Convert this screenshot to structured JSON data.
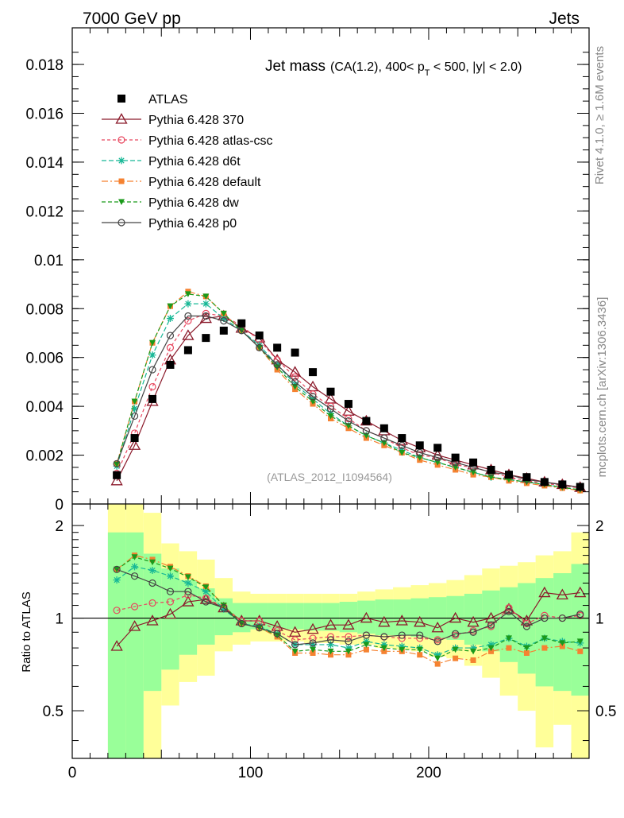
{
  "header": {
    "left": "7000 GeV pp",
    "right": "Jets"
  },
  "side_labels": {
    "rivet": "Rivet 4.1.0, ≥ 1.6M events",
    "mcplots": "mcplots.cern.ch [arXiv:1306.3436]"
  },
  "chart_data": [
    {
      "type": "line",
      "title_main": "Jet mass",
      "title_sub": "(CA(1.2), 400< p",
      "title_sub_T": "T",
      "title_sub_rest": " < 500, |y| < 2.0)",
      "watermark": "(ATLAS_2012_I1094564)",
      "xlim": [
        0,
        290
      ],
      "ylim": [
        0,
        0.0195
      ],
      "yticks": [
        0,
        0.002,
        0.004,
        0.006,
        0.008,
        0.01,
        0.012,
        0.014,
        0.016,
        0.018
      ],
      "ytick_labels": [
        "0",
        "0.002",
        "0.004",
        "0.006",
        "0.008",
        "0.01",
        "0.012",
        "0.014",
        "0.016",
        "0.018"
      ],
      "x": [
        25,
        35,
        45,
        55,
        65,
        75,
        85,
        95,
        105,
        115,
        125,
        135,
        145,
        155,
        165,
        175,
        185,
        195,
        205,
        215,
        225,
        235,
        245,
        255,
        265,
        275,
        285
      ],
      "series": [
        {
          "name": "ATLAS",
          "color": "#000000",
          "marker": "square",
          "values": [
            0.00118,
            0.0027,
            0.0043,
            0.0057,
            0.0063,
            0.0068,
            0.0071,
            0.0074,
            0.0069,
            0.0064,
            0.0062,
            0.0054,
            0.0046,
            0.0041,
            0.0034,
            0.0031,
            0.0027,
            0.0024,
            0.0023,
            0.0019,
            0.0017,
            0.0014,
            0.0012,
            0.0011,
            0.0009,
            0.0008,
            0.0007
          ]
        },
        {
          "name": "Pythia 6.428 370",
          "color": "#8b1a2b",
          "marker": "triangle-open",
          "dash": "solid",
          "values": [
            0.00095,
            0.0024,
            0.0042,
            0.0059,
            0.0069,
            0.0076,
            0.0077,
            0.0072,
            0.0068,
            0.0059,
            0.0054,
            0.0048,
            0.0043,
            0.0038,
            0.0034,
            0.003,
            0.0026,
            0.0023,
            0.002,
            0.0018,
            0.0016,
            0.0014,
            0.0012,
            0.00105,
            0.0009,
            0.0008,
            0.00068
          ]
        },
        {
          "name": "Pythia 6.428 atlas-csc",
          "color": "#e8475f",
          "marker": "circle-open",
          "dash": "4,3",
          "values": [
            0.00125,
            0.0029,
            0.0048,
            0.0064,
            0.0075,
            0.0078,
            0.0077,
            0.0073,
            0.0067,
            0.0059,
            0.0052,
            0.0045,
            0.004,
            0.0035,
            0.003,
            0.0027,
            0.0023,
            0.002,
            0.0019,
            0.0016,
            0.0015,
            0.0013,
            0.0011,
            0.00095,
            0.00085,
            0.00075,
            0.00065
          ]
        },
        {
          "name": "Pythia 6.428 d6t",
          "color": "#17b896",
          "marker": "star",
          "dash": "6,3",
          "values": [
            0.00155,
            0.0039,
            0.0061,
            0.0076,
            0.0082,
            0.0082,
            0.0076,
            0.0071,
            0.0065,
            0.0057,
            0.0049,
            0.0043,
            0.0037,
            0.0032,
            0.0028,
            0.0025,
            0.0022,
            0.0019,
            0.0017,
            0.0015,
            0.0013,
            0.0011,
            0.001,
            0.0009,
            0.0008,
            0.00068,
            0.00058
          ]
        },
        {
          "name": "Pythia 6.428 default",
          "color": "#f58231",
          "marker": "square-filled",
          "dash": "8,3,2,3",
          "values": [
            0.00165,
            0.0042,
            0.0066,
            0.0081,
            0.0087,
            0.0085,
            0.0078,
            0.0071,
            0.0064,
            0.0055,
            0.0047,
            0.0041,
            0.0035,
            0.0031,
            0.0027,
            0.0024,
            0.0021,
            0.0018,
            0.0016,
            0.0014,
            0.0012,
            0.0011,
            0.00095,
            0.00085,
            0.00075,
            0.00065,
            0.00055
          ]
        },
        {
          "name": "Pythia 6.428 dw",
          "color": "#1a9a1a",
          "marker": "triangle-down-filled",
          "dash": "5,3",
          "values": [
            0.00162,
            0.0042,
            0.0066,
            0.0081,
            0.0086,
            0.0085,
            0.0078,
            0.0071,
            0.0064,
            0.0056,
            0.0048,
            0.0042,
            0.0036,
            0.0032,
            0.0028,
            0.0025,
            0.0021,
            0.0019,
            0.0017,
            0.0015,
            0.0013,
            0.0011,
            0.001,
            0.0009,
            0.0008,
            0.00068,
            0.00058
          ]
        },
        {
          "name": "Pythia 6.428 p0",
          "color": "#444444",
          "marker": "circle-open",
          "dash": "solid",
          "values": [
            0.00165,
            0.0036,
            0.0055,
            0.0069,
            0.0077,
            0.0077,
            0.0075,
            0.0071,
            0.0064,
            0.0057,
            0.005,
            0.0044,
            0.0039,
            0.0034,
            0.003,
            0.0027,
            0.0024,
            0.0021,
            0.0019,
            0.0017,
            0.0015,
            0.0013,
            0.0012,
            0.001,
            0.0009,
            0.00078,
            0.00068
          ]
        }
      ]
    },
    {
      "type": "line",
      "ylabel": "Ratio to ATLAS",
      "xlim": [
        0,
        290
      ],
      "ylim": [
        0.35,
        2.35
      ],
      "scale": "log",
      "yticks": [
        0.5,
        1,
        2
      ],
      "ytick_labels": [
        "0.5",
        "1",
        "2"
      ],
      "xticks": [
        0,
        100,
        200
      ],
      "xtick_labels": [
        "0",
        "100",
        "200"
      ],
      "x": [
        25,
        35,
        45,
        55,
        65,
        75,
        85,
        95,
        105,
        115,
        125,
        135,
        145,
        155,
        165,
        175,
        185,
        195,
        205,
        215,
        225,
        235,
        245,
        255,
        265,
        275,
        285
      ],
      "bands": {
        "yellow_low": [
          0.35,
          0.35,
          0.35,
          0.52,
          0.62,
          0.65,
          0.78,
          0.82,
          0.84,
          0.84,
          0.84,
          0.83,
          0.83,
          0.82,
          0.82,
          0.8,
          0.79,
          0.78,
          0.75,
          0.74,
          0.7,
          0.64,
          0.56,
          0.5,
          0.38,
          0.45,
          0.35
        ],
        "yellow_high": [
          2.35,
          2.35,
          2.2,
          1.75,
          1.65,
          1.55,
          1.35,
          1.22,
          1.2,
          1.2,
          1.2,
          1.2,
          1.2,
          1.2,
          1.22,
          1.24,
          1.26,
          1.28,
          1.3,
          1.33,
          1.38,
          1.45,
          1.48,
          1.52,
          1.6,
          1.65,
          1.9
        ],
        "green_low": [
          0.35,
          0.35,
          0.58,
          0.68,
          0.76,
          0.82,
          0.88,
          0.9,
          0.92,
          0.92,
          0.92,
          0.91,
          0.91,
          0.9,
          0.89,
          0.88,
          0.88,
          0.87,
          0.86,
          0.85,
          0.82,
          0.78,
          0.72,
          0.66,
          0.6,
          0.58,
          0.56
        ],
        "green_high": [
          1.9,
          1.9,
          1.62,
          1.45,
          1.33,
          1.25,
          1.16,
          1.12,
          1.12,
          1.12,
          1.12,
          1.12,
          1.12,
          1.13,
          1.14,
          1.15,
          1.15,
          1.16,
          1.17,
          1.18,
          1.2,
          1.23,
          1.26,
          1.3,
          1.35,
          1.4,
          1.5
        ]
      },
      "series": [
        {
          "name": "Pythia 6.428 370",
          "color": "#8b1a2b",
          "marker": "triangle-open",
          "dash": "solid",
          "values": [
            0.81,
            0.94,
            0.98,
            1.03,
            1.13,
            1.15,
            1.08,
            0.98,
            0.98,
            0.94,
            0.9,
            0.92,
            0.95,
            0.95,
            1.0,
            0.97,
            0.98,
            0.97,
            0.93,
            1.0,
            0.97,
            1.0,
            1.07,
            0.98,
            1.21,
            1.19,
            1.21
          ]
        },
        {
          "name": "Pythia 6.428 atlas-csc",
          "color": "#e8475f",
          "marker": "circle-open",
          "dash": "4,3",
          "values": [
            1.06,
            1.09,
            1.12,
            1.13,
            1.19,
            1.16,
            1.09,
            0.98,
            0.98,
            0.91,
            0.85,
            0.86,
            0.87,
            0.87,
            0.88,
            0.87,
            0.86,
            0.86,
            0.85,
            0.88,
            0.91,
            0.94,
            1.08,
            0.96,
            1.02,
            1.0,
            1.02
          ]
        },
        {
          "name": "Pythia 6.428 d6t",
          "color": "#17b896",
          "marker": "star",
          "dash": "6,3",
          "values": [
            1.33,
            1.47,
            1.43,
            1.37,
            1.3,
            1.22,
            1.07,
            0.96,
            0.94,
            0.89,
            0.82,
            0.82,
            0.82,
            0.8,
            0.84,
            0.82,
            0.81,
            0.8,
            0.76,
            0.8,
            0.8,
            0.82,
            0.86,
            0.81,
            0.86,
            0.84,
            0.83
          ]
        },
        {
          "name": "Pythia 6.428 default",
          "color": "#f58231",
          "marker": "square-filled",
          "dash": "8,3,2,3",
          "values": [
            1.44,
            1.6,
            1.55,
            1.47,
            1.37,
            1.27,
            1.1,
            0.96,
            0.93,
            0.87,
            0.77,
            0.77,
            0.76,
            0.76,
            0.79,
            0.78,
            0.78,
            0.76,
            0.71,
            0.74,
            0.73,
            0.78,
            0.8,
            0.77,
            0.8,
            0.81,
            0.78
          ]
        },
        {
          "name": "Pythia 6.428 dw",
          "color": "#1a9a1a",
          "marker": "triangle-down-filled",
          "dash": "5,3",
          "values": [
            1.44,
            1.58,
            1.52,
            1.45,
            1.36,
            1.26,
            1.1,
            0.96,
            0.93,
            0.88,
            0.78,
            0.79,
            0.78,
            0.78,
            0.82,
            0.8,
            0.79,
            0.79,
            0.74,
            0.79,
            0.78,
            0.8,
            0.86,
            0.8,
            0.86,
            0.83,
            0.84
          ]
        },
        {
          "name": "Pythia 6.428 p0",
          "color": "#444444",
          "marker": "circle-open",
          "dash": "solid",
          "values": [
            1.44,
            1.37,
            1.3,
            1.22,
            1.22,
            1.13,
            1.08,
            0.96,
            0.93,
            0.89,
            0.82,
            0.83,
            0.85,
            0.84,
            0.88,
            0.87,
            0.88,
            0.88,
            0.84,
            0.89,
            0.9,
            0.95,
            1.05,
            0.94,
            1.0,
            1.0,
            1.03
          ]
        }
      ]
    }
  ]
}
